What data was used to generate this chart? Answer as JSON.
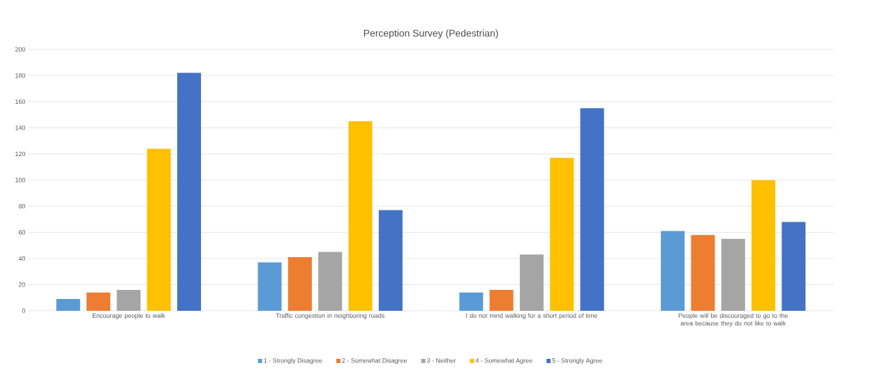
{
  "chart_data": {
    "type": "bar",
    "title": "Perception Survey (Pedestrian)",
    "categories": [
      "Encourage people to walk",
      "Traffic congestion in neighboring roads",
      "I do not mind walking for a short period of time",
      "People will be discouraged to go to the area because they do not like to walk"
    ],
    "series": [
      {
        "name": "1 - Strongly Disagree",
        "color": "#5b9bd5",
        "values": [
          9,
          37,
          14,
          61
        ]
      },
      {
        "name": "2 - Somewhat Disagree",
        "color": "#ed7d31",
        "values": [
          14,
          41,
          16,
          58
        ]
      },
      {
        "name": "3 - Neither",
        "color": "#a5a5a5",
        "values": [
          16,
          45,
          43,
          55
        ]
      },
      {
        "name": "4 - Somewhat Agree",
        "color": "#ffc000",
        "values": [
          124,
          145,
          117,
          100
        ]
      },
      {
        "name": "5 - Strongly Agree",
        "color": "#4472c4",
        "values": [
          182,
          77,
          155,
          68
        ]
      }
    ],
    "ylim": [
      0,
      200
    ],
    "yticks": [
      0,
      20,
      40,
      60,
      80,
      100,
      120,
      140,
      160,
      180,
      200
    ],
    "grid": "y",
    "legend": "bottom"
  }
}
